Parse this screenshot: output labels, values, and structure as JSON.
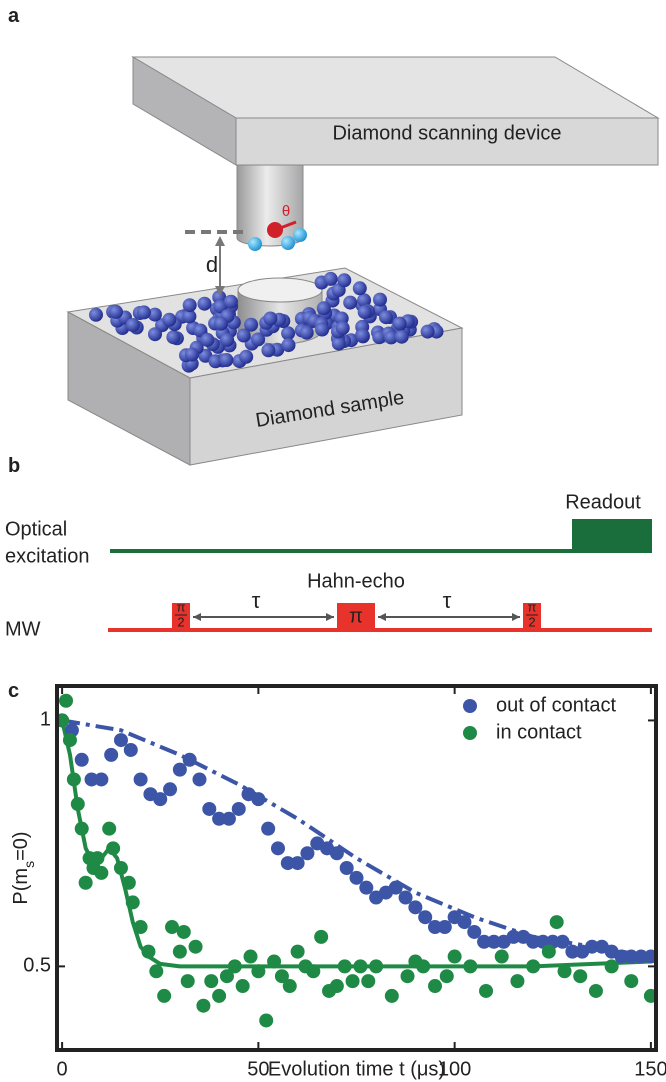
{
  "panel_a": {
    "label": "a",
    "device": "Diamond scanning device",
    "sample": "Diamond sample",
    "distance": "d",
    "angle": "θ"
  },
  "panel_b": {
    "label": "b",
    "optical": [
      "Optical",
      "excitation"
    ],
    "readout": "Readout",
    "mw": "MW",
    "sequence": "Hahn-echo",
    "delay": "τ",
    "pulses": [
      {
        "top": "π",
        "bottom": "2"
      },
      {
        "top": "π"
      },
      {
        "top": "π",
        "bottom": "2"
      }
    ]
  },
  "panel_c": {
    "label": "c"
  },
  "chart_data": {
    "type": "scatter",
    "xlabel": "Evolution time t (μs)",
    "ylabel": [
      "P(m",
      "s",
      "=0)"
    ],
    "xlim": [
      -1.3,
      151.3
    ],
    "ylim": [
      0.33,
      1.07
    ],
    "xticks": [
      0,
      50,
      100,
      150
    ],
    "yticks": [
      0.5,
      1
    ],
    "legend": "upper right",
    "series": [
      {
        "name": "out of contact",
        "color": "#3d55a6",
        "x": [
          0,
          2.5,
          5,
          7.5,
          10,
          12.5,
          15,
          17.5,
          20,
          22.5,
          25,
          27.5,
          30,
          32.5,
          35,
          37.5,
          40,
          42.5,
          45,
          47.5,
          50,
          52.5,
          55,
          57.5,
          60,
          62.5,
          65,
          67.5,
          70,
          72.5,
          75,
          77.5,
          80,
          82.5,
          85,
          87.5,
          90,
          92.5,
          95,
          97.5,
          100,
          102.5,
          105,
          107.5,
          110,
          112.5,
          115,
          117.5,
          120,
          122.5,
          125,
          127.5,
          130,
          132.5,
          135,
          137.5,
          140,
          142.5,
          145,
          147.5,
          150
        ],
        "values": [
          1.0,
          0.98,
          0.92,
          0.88,
          0.88,
          0.93,
          0.96,
          0.94,
          0.88,
          0.85,
          0.84,
          0.86,
          0.9,
          0.92,
          0.88,
          0.82,
          0.8,
          0.8,
          0.82,
          0.85,
          0.84,
          0.78,
          0.74,
          0.71,
          0.71,
          0.73,
          0.75,
          0.74,
          0.73,
          0.7,
          0.68,
          0.66,
          0.64,
          0.65,
          0.66,
          0.64,
          0.62,
          0.6,
          0.58,
          0.58,
          0.6,
          0.59,
          0.57,
          0.55,
          0.55,
          0.55,
          0.56,
          0.56,
          0.55,
          0.55,
          0.55,
          0.55,
          0.53,
          0.53,
          0.54,
          0.54,
          0.53,
          0.52,
          0.52,
          0.52,
          0.52
        ]
      },
      {
        "name": "in contact",
        "color": "#1f8a45",
        "x": [
          0,
          1,
          2,
          3,
          4,
          5,
          6,
          7,
          8,
          9,
          10,
          12,
          13,
          15,
          17,
          18,
          20,
          22,
          24,
          26,
          28,
          30,
          31,
          32,
          34,
          36,
          38,
          40,
          42,
          44,
          46,
          48,
          50,
          52,
          54,
          56,
          58,
          60,
          62,
          64,
          66,
          68,
          70,
          72,
          74,
          76,
          78,
          80,
          84,
          88,
          90,
          92,
          95,
          98,
          100,
          104,
          108,
          112,
          116,
          120,
          124,
          126,
          128,
          132,
          136,
          140,
          145,
          150
        ],
        "values": [
          1.0,
          1.04,
          0.96,
          0.88,
          0.83,
          0.78,
          0.67,
          0.72,
          0.7,
          0.72,
          0.69,
          0.78,
          0.74,
          0.7,
          0.67,
          0.63,
          0.58,
          0.53,
          0.49,
          0.44,
          0.58,
          0.53,
          0.57,
          0.47,
          0.54,
          0.42,
          0.47,
          0.44,
          0.48,
          0.5,
          0.46,
          0.52,
          0.49,
          0.39,
          0.51,
          0.48,
          0.46,
          0.53,
          0.5,
          0.49,
          0.56,
          0.45,
          0.46,
          0.5,
          0.47,
          0.5,
          0.47,
          0.5,
          0.44,
          0.48,
          0.51,
          0.5,
          0.46,
          0.48,
          0.52,
          0.5,
          0.45,
          0.52,
          0.47,
          0.5,
          0.53,
          0.59,
          0.49,
          0.48,
          0.45,
          0.5,
          0.47,
          0.44
        ]
      }
    ],
    "fits": [
      {
        "color": "#3d55a6",
        "dash": "dashdot",
        "x": [
          0,
          15,
          30,
          45,
          60,
          75,
          90,
          105,
          120,
          135,
          150
        ],
        "values": [
          1.0,
          0.98,
          0.93,
          0.87,
          0.8,
          0.72,
          0.65,
          0.6,
          0.56,
          0.54,
          0.52
        ]
      },
      {
        "color": "#1f8a45",
        "dash": "solid",
        "x": [
          0,
          2,
          4,
          6,
          8,
          10,
          12,
          14,
          16,
          18,
          20,
          22,
          25,
          30,
          40,
          60,
          80,
          100,
          120,
          150
        ],
        "values": [
          1.0,
          0.93,
          0.82,
          0.74,
          0.71,
          0.72,
          0.74,
          0.72,
          0.66,
          0.59,
          0.54,
          0.52,
          0.505,
          0.5,
          0.5,
          0.5,
          0.5,
          0.5,
          0.5,
          0.51
        ]
      }
    ]
  }
}
